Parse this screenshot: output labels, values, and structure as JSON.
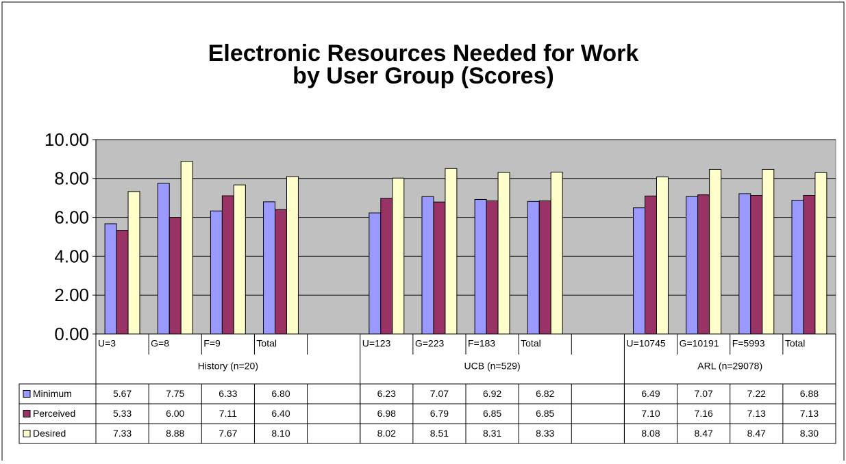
{
  "chart_data": {
    "type": "bar",
    "title": "Electronic Resources Needed for Work",
    "subtitle": "by User Group (Scores)",
    "categories": [
      "U=3",
      "G=8",
      "F=9",
      "Total",
      null,
      "U=123",
      "G=223",
      "F=183",
      "Total",
      null,
      "U=10745",
      "G=10191",
      "F=5993",
      "Total"
    ],
    "groups": [
      "History (n=20)",
      "UCB (n=529)",
      "ARL (n=29078)"
    ],
    "series": [
      {
        "name": "Minimum",
        "color": "#9999ff",
        "values": [
          5.67,
          7.75,
          6.33,
          6.8,
          null,
          6.23,
          7.07,
          6.92,
          6.82,
          null,
          6.49,
          7.07,
          7.22,
          6.88
        ],
        "value_labels": [
          "5.67",
          "7.75",
          "6.33",
          "6.80",
          null,
          "6.23",
          "7.07",
          "6.92",
          "6.82",
          null,
          "6.49",
          "7.07",
          "7.22",
          "6.88"
        ]
      },
      {
        "name": "Perceived",
        "color": "#993366",
        "values": [
          5.33,
          6.0,
          7.11,
          6.4,
          null,
          6.98,
          6.79,
          6.85,
          6.85,
          null,
          7.1,
          7.16,
          7.13,
          7.13
        ],
        "value_labels": [
          "5.33",
          "6.00",
          "7.11",
          "6.40",
          null,
          "6.98",
          "6.79",
          "6.85",
          "6.85",
          null,
          "7.10",
          "7.16",
          "7.13",
          "7.13"
        ]
      },
      {
        "name": "Desired",
        "color": "#ffffcc",
        "values": [
          7.33,
          8.88,
          7.67,
          8.1,
          null,
          8.02,
          8.51,
          8.31,
          8.33,
          null,
          8.08,
          8.47,
          8.47,
          8.3
        ],
        "value_labels": [
          "7.33",
          "8.88",
          "7.67",
          "8.10",
          null,
          "8.02",
          "8.51",
          "8.31",
          "8.33",
          null,
          "8.08",
          "8.47",
          "8.47",
          "8.30"
        ]
      }
    ],
    "ylim": [
      0,
      10
    ],
    "yticks": [
      {
        "value": 0,
        "label": "0.00"
      },
      {
        "value": 2,
        "label": "2.00"
      },
      {
        "value": 4,
        "label": "4.00"
      },
      {
        "value": 6,
        "label": "6.00"
      },
      {
        "value": 8,
        "label": "8.00"
      },
      {
        "value": 10,
        "label": "10.00"
      }
    ],
    "grid": true,
    "plot_background": "#c0c0c0"
  }
}
